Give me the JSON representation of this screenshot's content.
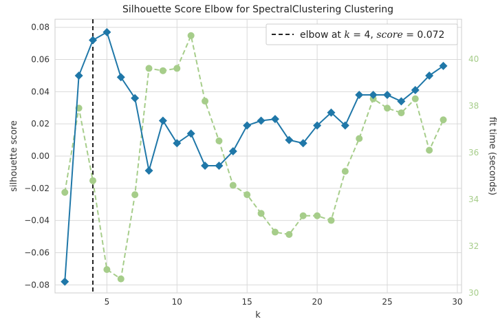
{
  "chart_data": {
    "type": "line",
    "title": "Silhouette Score Elbow for SpectralClustering Clustering",
    "xlabel": "k",
    "ylabel": "silhouette score",
    "y2label": "fit time (seconds)",
    "xlim": [
      1.3,
      30.3
    ],
    "ylim": [
      -0.085,
      0.085
    ],
    "y2lim": [
      30,
      41.7
    ],
    "xticks": [
      5,
      10,
      15,
      20,
      25,
      30
    ],
    "yticks": [
      -0.08,
      -0.06,
      -0.04,
      -0.02,
      0.0,
      0.02,
      0.04,
      0.06,
      0.08
    ],
    "yticks_labels": [
      "−0.08",
      "−0.06",
      "−0.04",
      "−0.02",
      "0.00",
      "0.02",
      "0.04",
      "0.06",
      "0.08"
    ],
    "y2ticks": [
      30,
      32,
      34,
      36,
      38,
      40
    ],
    "grid": true,
    "legend": "top-right",
    "elbow": {
      "k": 4,
      "score": 0.072,
      "label_prefix": "elbow at ",
      "label_k": "k",
      "label_mid": " = 4, ",
      "label_score": "score",
      "label_suffix": " = 0.072"
    },
    "series": [
      {
        "name": "silhouette score",
        "axis": "left",
        "color": "#1f77a8",
        "marker": "diamond",
        "x": [
          2,
          3,
          4,
          5,
          6,
          7,
          8,
          9,
          10,
          11,
          12,
          13,
          14,
          15,
          16,
          17,
          18,
          19,
          20,
          21,
          22,
          23,
          24,
          25,
          26,
          27,
          28,
          29
        ],
        "values": [
          -0.078,
          0.05,
          0.072,
          0.077,
          0.049,
          0.036,
          -0.009,
          0.022,
          0.008,
          0.014,
          -0.006,
          -0.006,
          0.003,
          0.019,
          0.022,
          0.023,
          0.01,
          0.008,
          0.019,
          0.027,
          0.019,
          0.038,
          0.038,
          0.038,
          0.034,
          0.041,
          0.05,
          0.056
        ]
      },
      {
        "name": "fit time (seconds)",
        "axis": "right",
        "color": "#a6cd8a",
        "marker": "circle",
        "dashed": true,
        "x": [
          2,
          3,
          4,
          5,
          6,
          7,
          8,
          9,
          10,
          11,
          12,
          13,
          14,
          15,
          16,
          17,
          18,
          19,
          20,
          21,
          22,
          23,
          24,
          25,
          26,
          27,
          28,
          29
        ],
        "values": [
          34.3,
          37.9,
          34.8,
          31.0,
          30.6,
          34.2,
          39.6,
          39.5,
          39.6,
          41.0,
          38.2,
          36.5,
          34.6,
          34.2,
          33.4,
          32.6,
          32.5,
          33.3,
          33.3,
          33.1,
          35.2,
          36.6,
          38.3,
          37.9,
          37.7,
          38.3,
          36.1,
          37.4
        ]
      }
    ]
  }
}
